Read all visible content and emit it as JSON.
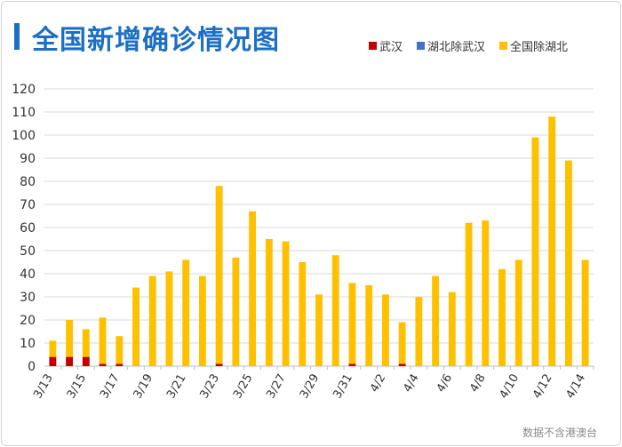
{
  "title": "全国新增确诊情况图",
  "source_note": "数据不含港澳台",
  "colors": {
    "wuhan": "#c00000",
    "hubei_ex_wuhan": "#4472c4",
    "national_ex_hubei": "#ffc000",
    "title": "#1d6fc4"
  },
  "legend": [
    {
      "label": "武汉",
      "color": "#c00000"
    },
    {
      "label": "湖北除武汉",
      "color": "#4472c4"
    },
    {
      "label": "全国除湖北",
      "color": "#ffc000"
    }
  ],
  "chart_data": {
    "type": "bar",
    "stacked": true,
    "categories": [
      "3/13",
      "3/14",
      "3/15",
      "3/16",
      "3/17",
      "3/18",
      "3/19",
      "3/20",
      "3/21",
      "3/22",
      "3/23",
      "3/24",
      "3/25",
      "3/26",
      "3/27",
      "3/28",
      "3/29",
      "3/30",
      "3/31",
      "4/1",
      "4/2",
      "4/3",
      "4/4",
      "4/5",
      "4/6",
      "4/7",
      "4/8",
      "4/9",
      "4/10",
      "4/11",
      "4/12",
      "4/13",
      "4/14"
    ],
    "tick_labels": [
      "3/13",
      "",
      "3/15",
      "",
      "3/17",
      "",
      "3/19",
      "",
      "3/21",
      "",
      "3/23",
      "",
      "3/25",
      "",
      "3/27",
      "",
      "3/29",
      "",
      "3/31",
      "",
      "4/2",
      "",
      "4/4",
      "",
      "4/6",
      "",
      "4/8",
      "",
      "4/10",
      "",
      "4/12",
      "",
      "4/14"
    ],
    "series": [
      {
        "name": "武汉",
        "values": [
          4,
          4,
          4,
          1,
          1,
          0,
          0,
          0,
          0,
          0,
          1,
          0,
          0,
          0,
          0,
          0,
          0,
          0,
          1,
          0,
          0,
          1,
          0,
          0,
          0,
          0,
          0,
          0,
          0,
          0,
          0,
          0,
          0
        ]
      },
      {
        "name": "湖北除武汉",
        "values": [
          0,
          0,
          0,
          0,
          0,
          0,
          0,
          0,
          0,
          0,
          0,
          0,
          0,
          0,
          0,
          0,
          0,
          0,
          0,
          0,
          0,
          0,
          0,
          0,
          0,
          0,
          0,
          0,
          0,
          0,
          0,
          0,
          0
        ]
      },
      {
        "name": "全国除湖北",
        "values": [
          7,
          16,
          12,
          20,
          12,
          34,
          39,
          41,
          46,
          39,
          77,
          47,
          67,
          55,
          54,
          45,
          31,
          48,
          35,
          35,
          31,
          18,
          30,
          39,
          32,
          62,
          63,
          42,
          46,
          99,
          108,
          89,
          46
        ]
      }
    ],
    "ylim": [
      0,
      120
    ],
    "yticks": [
      0,
      10,
      20,
      30,
      40,
      50,
      60,
      70,
      80,
      90,
      100,
      110,
      120
    ],
    "grid": true,
    "legend_position": "top-right"
  }
}
